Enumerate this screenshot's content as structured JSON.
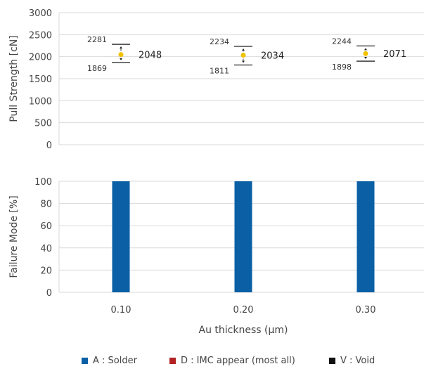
{
  "chart_data": [
    {
      "type": "scatter",
      "ylabel": "Pull Strength [cN]",
      "ylim": [
        0,
        3000
      ],
      "yticks": [
        0,
        500,
        1000,
        1500,
        2000,
        2500,
        3000
      ],
      "categories": [
        "0.10",
        "0.20",
        "0.30"
      ],
      "grid": true,
      "series": [
        {
          "values": [
            2048,
            2034,
            2071
          ],
          "max": [
            2281,
            2234,
            2244
          ],
          "min": [
            1869,
            1811,
            1898
          ]
        }
      ],
      "colors": {
        "point": "#f2c200",
        "errorbar": "#222222"
      }
    },
    {
      "type": "bar",
      "ylabel": "Failure Mode [%]",
      "xlabel": "Au thickness (μm)",
      "ylim": [
        0,
        100
      ],
      "yticks": [
        0,
        20,
        40,
        60,
        80,
        100
      ],
      "categories": [
        "0.10",
        "0.20",
        "0.30"
      ],
      "grid": true,
      "series": [
        {
          "name": "A : Solder",
          "values": [
            100,
            100,
            100
          ],
          "color": "#0a5fa5"
        },
        {
          "name": "D : IMC appear (most all)",
          "values": [
            0,
            0,
            0
          ],
          "color": "#b22222"
        },
        {
          "name": "V : Void",
          "values": [
            0,
            0,
            0
          ],
          "color": "#111111"
        }
      ],
      "legend_position": "bottom"
    }
  ]
}
